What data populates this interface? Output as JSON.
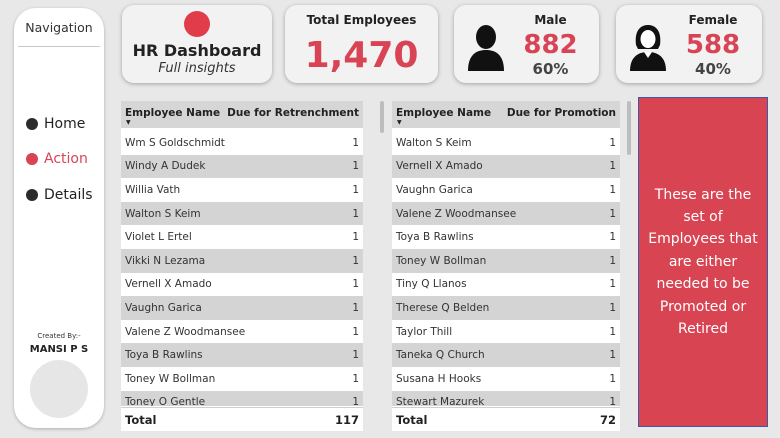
{
  "nav": {
    "title": "Navigation",
    "items": [
      {
        "label": "Home",
        "active": false
      },
      {
        "label": "Action",
        "active": true
      },
      {
        "label": "Details",
        "active": false
      }
    ],
    "created_by": "Created By:-",
    "author": "MANSI P S"
  },
  "cards": {
    "hr": {
      "title": "HR Dashboard",
      "subtitle": "Full insights"
    },
    "total": {
      "title": "Total Employees",
      "value": "1,470"
    },
    "male": {
      "title": "Male",
      "value": "882",
      "pct": "60%"
    },
    "female": {
      "title": "Female",
      "value": "588",
      "pct": "40%"
    }
  },
  "retrenchment": {
    "col1": "Employee Name",
    "col2": "Due for Retrenchment",
    "rows": [
      {
        "name": "Wm S Goldschmidt",
        "value": "1"
      },
      {
        "name": "Windy A Dudek",
        "value": "1"
      },
      {
        "name": "Willia Vath",
        "value": "1"
      },
      {
        "name": "Walton S Keim",
        "value": "1"
      },
      {
        "name": "Violet L Ertel",
        "value": "1"
      },
      {
        "name": "Vikki N Lezama",
        "value": "1"
      },
      {
        "name": "Vernell X Amado",
        "value": "1"
      },
      {
        "name": "Vaughn Garica",
        "value": "1"
      },
      {
        "name": "Valene Z Woodmansee",
        "value": "1"
      },
      {
        "name": "Toya B Rawlins",
        "value": "1"
      },
      {
        "name": "Toney W Bollman",
        "value": "1"
      },
      {
        "name": "Toney O Gentle",
        "value": "1"
      }
    ],
    "total_label": "Total",
    "total_value": "117"
  },
  "promotion": {
    "col1": "Employee Name",
    "col2": "Due for Promotion",
    "rows": [
      {
        "name": "Walton S Keim",
        "value": "1"
      },
      {
        "name": "Vernell X Amado",
        "value": "1"
      },
      {
        "name": "Vaughn Garica",
        "value": "1"
      },
      {
        "name": "Valene Z Woodmansee",
        "value": "1"
      },
      {
        "name": "Toya B Rawlins",
        "value": "1"
      },
      {
        "name": "Toney W Bollman",
        "value": "1"
      },
      {
        "name": "Tiny Q Llanos",
        "value": "1"
      },
      {
        "name": "Therese Q Belden",
        "value": "1"
      },
      {
        "name": "Taylor Thill",
        "value": "1"
      },
      {
        "name": "Taneka Q Church",
        "value": "1"
      },
      {
        "name": "Susana H Hooks",
        "value": "1"
      },
      {
        "name": "Stewart Mazurek",
        "value": "1"
      }
    ],
    "total_label": "Total",
    "total_value": "72"
  },
  "info_text": "These are the set of Employees that are either needed to be Promoted or Retired",
  "colors": {
    "accent": "#d94455",
    "info_bg": "#d94452",
    "page_bg": "#e8e8e8"
  },
  "icons": {
    "nav_bullet": "dot-icon",
    "male": "male-person-icon",
    "female": "female-person-icon",
    "sort": "sort-down-icon"
  }
}
